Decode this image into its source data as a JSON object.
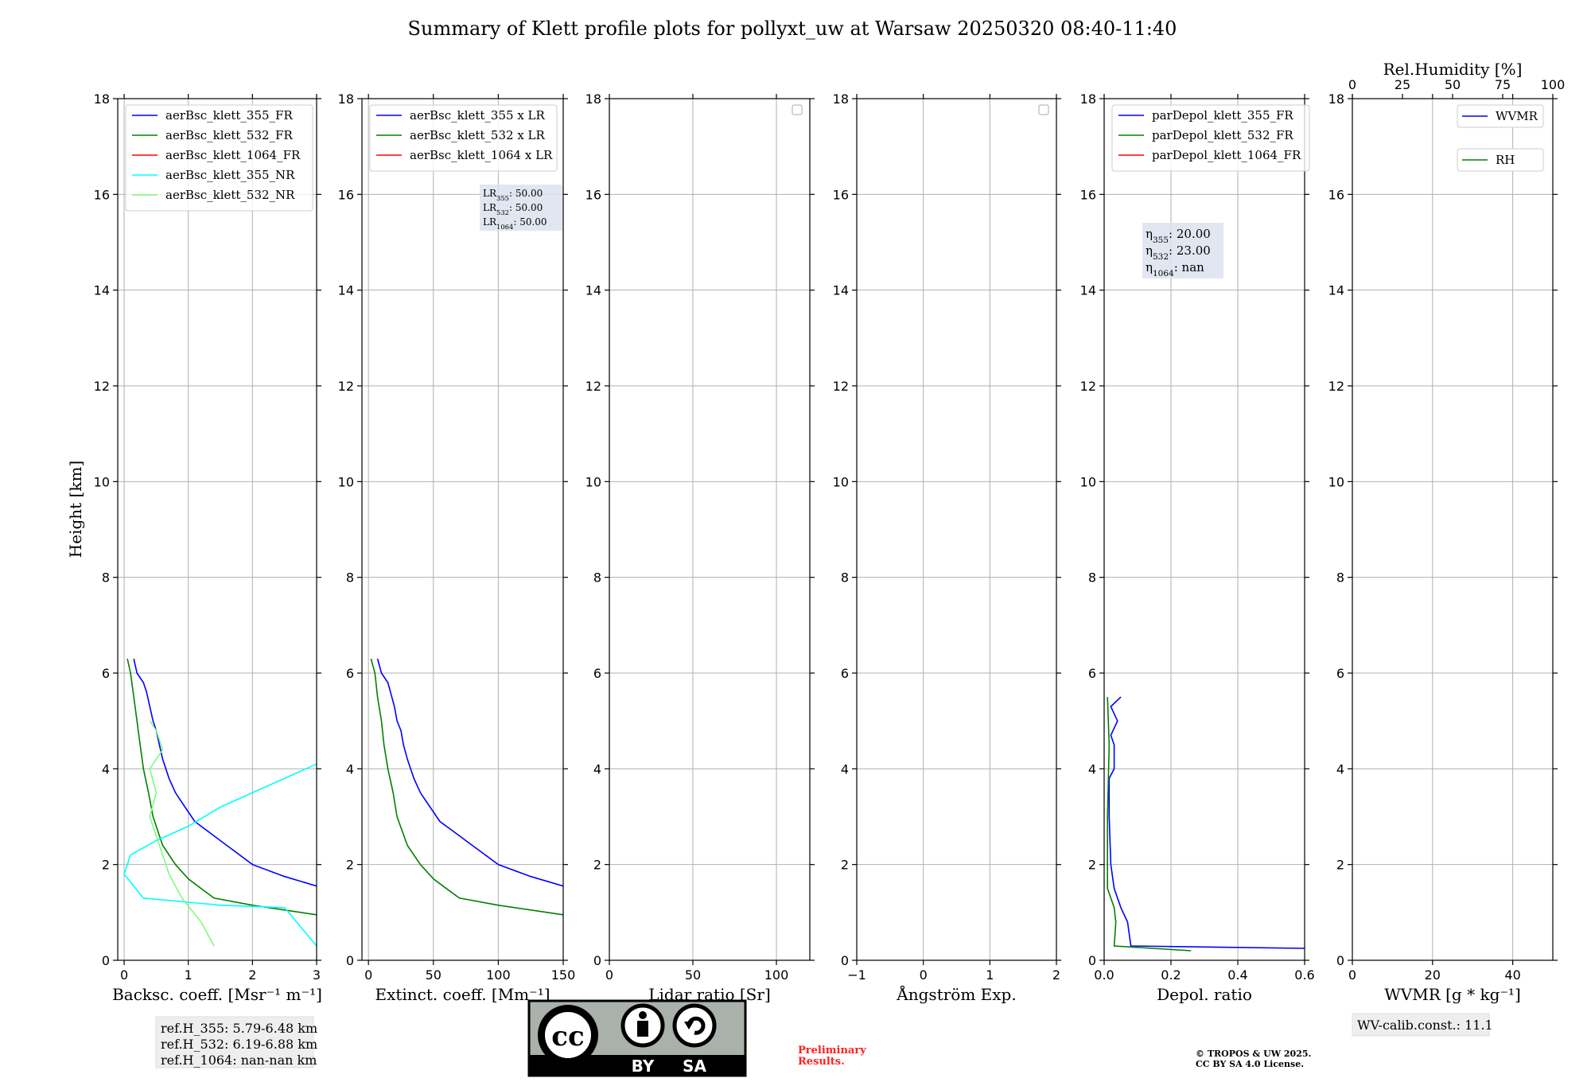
{
  "title": "Summary of Klett profile plots for pollyxt_uw at Warsaw 20250320 08:40-11:40",
  "ylabel": "Height [km]",
  "colors": {
    "blue": "#0000ff",
    "green": "#008000",
    "red": "#ff0000",
    "cyan": "#00ffff",
    "lightgreen": "#7cfc7c",
    "grid": "#b0b0b0"
  },
  "chart_data": [
    {
      "type": "line",
      "xlabel": "Backsc. coeff. [Msr⁻¹ m⁻¹]",
      "xlim": [
        -0.1,
        3
      ],
      "ylim": [
        0,
        18
      ],
      "xticks": [
        0,
        1,
        2,
        3
      ],
      "yticks": [
        0,
        2,
        4,
        6,
        8,
        10,
        12,
        14,
        16,
        18
      ],
      "legend": "top",
      "series": [
        {
          "name": "aerBsc_klett_355_FR",
          "color": "#0000ff",
          "x": [
            3.0,
            2.5,
            2.0,
            1.7,
            1.5,
            1.3,
            1.1,
            1.0,
            0.9,
            0.8,
            0.7,
            0.6,
            0.55,
            0.5,
            0.45,
            0.4,
            0.35,
            0.3,
            0.2,
            0.15
          ],
          "y": [
            1.55,
            1.75,
            2.0,
            2.3,
            2.5,
            2.7,
            2.9,
            3.1,
            3.3,
            3.5,
            3.8,
            4.2,
            4.5,
            4.8,
            5.0,
            5.3,
            5.6,
            5.8,
            6.0,
            6.3
          ]
        },
        {
          "name": "aerBsc_klett_532_FR",
          "color": "#008000",
          "x": [
            3.0,
            2.0,
            1.4,
            1.2,
            1.0,
            0.8,
            0.6,
            0.45,
            0.38,
            0.3,
            0.25,
            0.2,
            0.15,
            0.1,
            0.05
          ],
          "y": [
            0.95,
            1.15,
            1.3,
            1.5,
            1.7,
            2.0,
            2.4,
            3.0,
            3.5,
            4.0,
            4.5,
            5.0,
            5.5,
            6.0,
            6.3
          ]
        },
        {
          "name": "aerBsc_klett_1064_FR",
          "color": "#ff0000",
          "x": [],
          "y": []
        },
        {
          "name": "aerBsc_klett_355_NR",
          "color": "#00ffff",
          "x": [
            3.0,
            2.5,
            1.5,
            0.3,
            0.0,
            0.1,
            0.5,
            1.0,
            1.5,
            2.0,
            2.5,
            3.0
          ],
          "y": [
            0.3,
            1.1,
            1.15,
            1.3,
            1.8,
            2.2,
            2.5,
            2.8,
            3.2,
            3.5,
            3.8,
            4.1
          ]
        },
        {
          "name": "aerBsc_klett_532_NR",
          "color": "#7cfc7c",
          "x": [
            1.4,
            1.2,
            0.9,
            0.7,
            0.6,
            0.5,
            0.4,
            0.5,
            0.4,
            0.6,
            0.5,
            0.4
          ],
          "y": [
            0.3,
            0.8,
            1.3,
            1.8,
            2.2,
            2.6,
            3.0,
            3.5,
            4.0,
            4.4,
            4.8,
            5.0
          ]
        }
      ]
    },
    {
      "type": "line",
      "xlabel": "Extinct. coeff. [Mm⁻¹]",
      "xlim": [
        -5,
        150
      ],
      "ylim": [
        0,
        18
      ],
      "xticks": [
        0,
        50,
        100,
        150
      ],
      "yticks": [
        0,
        2,
        4,
        6,
        8,
        10,
        12,
        14,
        16,
        18
      ],
      "legend": "top",
      "annotation": [
        "LR355: 50.00",
        "LR532: 50.00",
        "LR1064: 50.00"
      ],
      "series": [
        {
          "name": "aerBsc_klett_355 x LR",
          "color": "#0000ff",
          "x": [
            150,
            125,
            100,
            85,
            75,
            65,
            55,
            50,
            45,
            40,
            35,
            30,
            27,
            25,
            22,
            20,
            17,
            15,
            10,
            7
          ],
          "y": [
            1.55,
            1.75,
            2.0,
            2.3,
            2.5,
            2.7,
            2.9,
            3.1,
            3.3,
            3.5,
            3.8,
            4.2,
            4.5,
            4.8,
            5.0,
            5.3,
            5.6,
            5.8,
            6.0,
            6.3
          ]
        },
        {
          "name": "aerBsc_klett_532 x LR",
          "color": "#008000",
          "x": [
            150,
            100,
            70,
            60,
            50,
            40,
            30,
            22,
            19,
            15,
            12,
            10,
            7,
            5,
            2
          ],
          "y": [
            0.95,
            1.15,
            1.3,
            1.5,
            1.7,
            2.0,
            2.4,
            3.0,
            3.5,
            4.0,
            4.5,
            5.0,
            5.5,
            6.0,
            6.3
          ]
        },
        {
          "name": "aerBsc_klett_1064 x LR",
          "color": "#ff0000",
          "x": [],
          "y": []
        }
      ]
    },
    {
      "type": "line",
      "xlabel": "Lidar ratio [Sr]",
      "xlim": [
        0,
        120
      ],
      "ylim": [
        0,
        18
      ],
      "xticks": [
        0,
        50,
        100
      ],
      "yticks": [
        0,
        2,
        4,
        6,
        8,
        10,
        12,
        14,
        16,
        18
      ],
      "series": []
    },
    {
      "type": "line",
      "xlabel": "Ångström Exp.",
      "xlim": [
        -1,
        2
      ],
      "ylim": [
        0,
        18
      ],
      "xticks": [
        -1,
        0,
        1,
        2
      ],
      "yticks": [
        0,
        2,
        4,
        6,
        8,
        10,
        12,
        14,
        16,
        18
      ],
      "series": []
    },
    {
      "type": "line",
      "xlabel": "Depol. ratio",
      "xlim": [
        0,
        0.6
      ],
      "ylim": [
        0,
        18
      ],
      "xticks": [
        0.0,
        0.2,
        0.4,
        0.6
      ],
      "yticks": [
        0,
        2,
        4,
        6,
        8,
        10,
        12,
        14,
        16,
        18
      ],
      "legend": "top",
      "annotation": [
        "η355: 20.00",
        "η532: 23.00",
        "η1064: nan"
      ],
      "series": [
        {
          "name": "parDepol_klett_355_FR",
          "color": "#0000ff",
          "x": [
            0.6,
            0.08,
            0.07,
            0.05,
            0.04,
            0.03,
            0.02,
            0.015,
            0.015,
            0.03,
            0.03,
            0.02,
            0.04,
            0.02,
            0.05
          ],
          "y": [
            0.25,
            0.3,
            0.8,
            1.1,
            1.3,
            1.5,
            2.0,
            3.0,
            3.8,
            4.0,
            4.5,
            4.7,
            5.0,
            5.3,
            5.5
          ]
        },
        {
          "name": "parDepol_klett_532_FR",
          "color": "#008000",
          "x": [
            0.26,
            0.03,
            0.035,
            0.03,
            0.02,
            0.01,
            0.01,
            0.015,
            0.01
          ],
          "y": [
            0.2,
            0.3,
            0.8,
            1.1,
            1.3,
            1.5,
            3.0,
            4.5,
            5.5
          ]
        },
        {
          "name": "parDepol_klett_1064_FR",
          "color": "#ff0000",
          "x": [],
          "y": []
        }
      ]
    },
    {
      "type": "line",
      "xlabel": "WVMR [g * kg⁻¹]",
      "xlim": [
        0,
        50
      ],
      "ylim": [
        0,
        18
      ],
      "xticks": [
        0,
        20,
        40
      ],
      "yticks": [
        0,
        2,
        4,
        6,
        8,
        10,
        12,
        14,
        16,
        18
      ],
      "top_xlabel": "Rel.Humidity [%]",
      "top_xlim": [
        0,
        100
      ],
      "top_xticks": [
        0,
        25,
        50,
        75,
        100
      ],
      "legend": "top-right",
      "series": [
        {
          "name": "WVMR",
          "color": "#0000ff",
          "x": [],
          "y": []
        },
        {
          "name": "RH",
          "color": "#008000",
          "x": [],
          "y": []
        }
      ]
    }
  ],
  "notes": {
    "refh": [
      "ref.H_355: 5.79-6.48 km",
      "ref.H_532: 6.19-6.88 km",
      "ref.H_1064: nan-nan km"
    ],
    "wvcalib": "WV-calib.const.: 11.1",
    "preliminary": [
      "Preliminary",
      "Results."
    ],
    "copyright": [
      "© TROPOS & UW 2025.",
      "CC BY SA 4.0 License."
    ],
    "cc_logo": {
      "cc": "cc",
      "by": "BY",
      "sa": "SA"
    }
  }
}
